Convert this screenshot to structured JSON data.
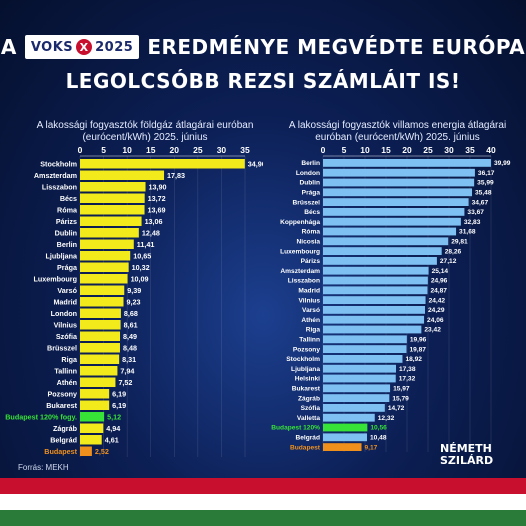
{
  "headline": {
    "prefix": "A",
    "logo_left": "VOKS",
    "logo_x": "X",
    "logo_right": "2025",
    "line1_rest": "EREDMÉNYE MEGVÉDTE EURÓPA",
    "line2": "LEGOLCSÓBB REZSI SZÁMLÁIT IS!"
  },
  "source": "Forrás: MEKH",
  "brand": {
    "line1": "NÉMETH",
    "line2": "SZILÁRD"
  },
  "colors": {
    "gas_bar": "#f2ea1a",
    "electricity_bar": "#7fc0f2",
    "budapest_discount": "#36e336",
    "budapest": "#f0901c",
    "flag_red": "#c8102e",
    "flag_white": "#ffffff",
    "flag_green": "#2a7a3a"
  },
  "chart_data": [
    {
      "type": "bar",
      "orientation": "horizontal",
      "title": "A lakossági fogyasztók földgáz átlagárai euróban (eurócent/kWh) 2025. június",
      "xlim": [
        0,
        35
      ],
      "xticks": [
        0,
        5,
        10,
        15,
        20,
        25,
        30,
        35
      ],
      "categories": [
        "Stockholm",
        "Amszterdam",
        "Lisszabon",
        "Bécs",
        "Róma",
        "Párizs",
        "Dublin",
        "Berlin",
        "Ljubljana",
        "Prága",
        "Luxembourg",
        "Varsó",
        "Madrid",
        "London",
        "Vilnius",
        "Szófia",
        "Brüsszel",
        "Riga",
        "Tallinn",
        "Athén",
        "Pozsony",
        "Bukarest",
        "Budapest 120% fogy.",
        "Zágráb",
        "Belgrád",
        "Budapest"
      ],
      "values": [
        34.96,
        17.83,
        13.9,
        13.72,
        13.69,
        13.06,
        12.48,
        11.41,
        10.65,
        10.32,
        10.09,
        9.39,
        9.23,
        8.68,
        8.61,
        8.49,
        8.48,
        8.31,
        7.94,
        7.52,
        6.19,
        6.19,
        5.12,
        4.94,
        4.61,
        2.52
      ],
      "labels": [
        "34,96",
        "17,83",
        "13,90",
        "13,72",
        "13,69",
        "13,06",
        "12,48",
        "11,41",
        "10,65",
        "10,32",
        "10,09",
        "9,39",
        "9,23",
        "8,68",
        "8,61",
        "8,49",
        "8,48",
        "8,31",
        "7,94",
        "7,52",
        "6,19",
        "6,19",
        "5,12",
        "4,94",
        "4,61",
        "2,52"
      ],
      "highlight": {
        "Budapest 120% fogy.": "budapest_discount",
        "Budapest": "budapest"
      }
    },
    {
      "type": "bar",
      "orientation": "horizontal",
      "title": "A lakossági fogyasztók villamos energia átlagárai euróban (eurócent/kWh) 2025. június",
      "xlim": [
        0,
        40
      ],
      "xticks": [
        0,
        5,
        10,
        15,
        20,
        25,
        30,
        35,
        40
      ],
      "categories": [
        "Berlin",
        "London",
        "Dublin",
        "Prága",
        "Brüsszel",
        "Bécs",
        "Koppenhága",
        "Róma",
        "Nicosia",
        "Luxembourg",
        "Párizs",
        "Amszterdam",
        "Lisszabon",
        "Madrid",
        "Vilnius",
        "Varsó",
        "Athén",
        "Riga",
        "Tallinn",
        "Pozsony",
        "Stockholm",
        "Ljubljana",
        "Helsinki",
        "Bukarest",
        "Zágráb",
        "Szófia",
        "Valletta",
        "Budapest 120%",
        "Belgrád",
        "Budapest"
      ],
      "values": [
        39.99,
        36.17,
        35.99,
        35.48,
        34.67,
        33.67,
        32.83,
        31.68,
        29.81,
        28.26,
        27.12,
        25.14,
        24.96,
        24.87,
        24.42,
        24.29,
        24.06,
        23.42,
        19.96,
        19.87,
        18.92,
        17.38,
        17.32,
        15.97,
        15.79,
        14.72,
        12.32,
        10.56,
        10.48,
        9.17
      ],
      "labels": [
        "39,99",
        "36,17",
        "35,99",
        "35,48",
        "34,67",
        "33,67",
        "32,83",
        "31,68",
        "29,81",
        "28,26",
        "27,12",
        "25,14",
        "24,96",
        "24,87",
        "24,42",
        "24,29",
        "24,06",
        "23,42",
        "19,96",
        "19,87",
        "18,92",
        "17,38",
        "17,32",
        "15,97",
        "15,79",
        "14,72",
        "12,32",
        "10,56",
        "10,48",
        "9,17"
      ],
      "highlight": {
        "Budapest 120%": "budapest_discount",
        "Budapest": "budapest"
      }
    }
  ]
}
